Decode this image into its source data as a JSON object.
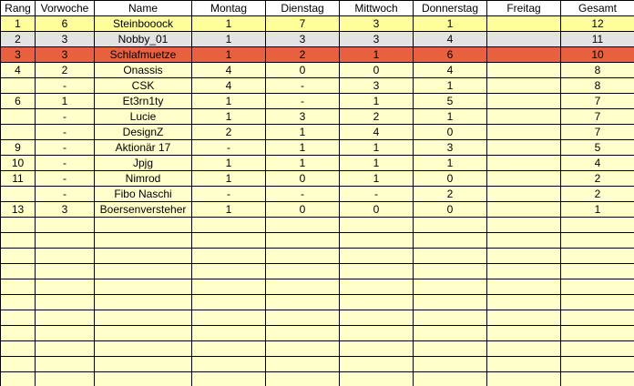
{
  "sheet": {
    "columns": [
      "Rang",
      "Vorwoche",
      "Name",
      "Montag",
      "Dienstag",
      "Mittwoch",
      "Donnerstag",
      "Freitag",
      "Gesamt"
    ],
    "rows": [
      {
        "style": "rank1",
        "cells": [
          "1",
          "6",
          "Steinbooock",
          "1",
          "7",
          "3",
          "1",
          "",
          "12"
        ]
      },
      {
        "style": "rank2",
        "cells": [
          "2",
          "3",
          "Nobby_01",
          "1",
          "3",
          "3",
          "4",
          "",
          "11"
        ]
      },
      {
        "style": "rank3",
        "cells": [
          "3",
          "3",
          "Schlafmuetze",
          "1",
          "2",
          "1",
          "6",
          "",
          "10"
        ]
      },
      {
        "style": "",
        "cells": [
          "4",
          "2",
          "Onassis",
          "4",
          "0",
          "0",
          "4",
          "",
          "8"
        ]
      },
      {
        "style": "",
        "cells": [
          "",
          "-",
          "CSK",
          "4",
          "-",
          "3",
          "1",
          "",
          "8"
        ]
      },
      {
        "style": "",
        "cells": [
          "6",
          "1",
          "Et3rn1ty",
          "1",
          "-",
          "1",
          "5",
          "",
          "7"
        ]
      },
      {
        "style": "",
        "cells": [
          "",
          "-",
          "Lucie",
          "1",
          "3",
          "2",
          "1",
          "",
          "7"
        ]
      },
      {
        "style": "",
        "cells": [
          "",
          "-",
          "DesignZ",
          "2",
          "1",
          "4",
          "0",
          "",
          "7"
        ]
      },
      {
        "style": "",
        "cells": [
          "9",
          "-",
          "Aktionär 17",
          "-",
          "1",
          "1",
          "3",
          "",
          "5"
        ]
      },
      {
        "style": "",
        "cells": [
          "10",
          "-",
          "Jpjg",
          "1",
          "1",
          "1",
          "1",
          "",
          "4"
        ]
      },
      {
        "style": "",
        "cells": [
          "11",
          "-",
          "Nimrod",
          "1",
          "0",
          "1",
          "0",
          "",
          "2"
        ]
      },
      {
        "style": "",
        "cells": [
          "",
          "-",
          "Fibo Naschi",
          "-",
          "-",
          "-",
          "2",
          "",
          "2"
        ]
      },
      {
        "style": "",
        "cells": [
          "13",
          "3",
          "Boersenversteher",
          "1",
          "0",
          "0",
          "0",
          "",
          "1"
        ]
      }
    ],
    "empty_row_count": 11
  },
  "colors": {
    "cell_bg": "#FFFFCC",
    "header_bg": "#FFFFFF",
    "rank1_bg": "#FFFF99",
    "rank2_bg": "#E3E3E3",
    "rank3_bg": "#E8613E",
    "grid": "#000000",
    "text": "#000000"
  }
}
